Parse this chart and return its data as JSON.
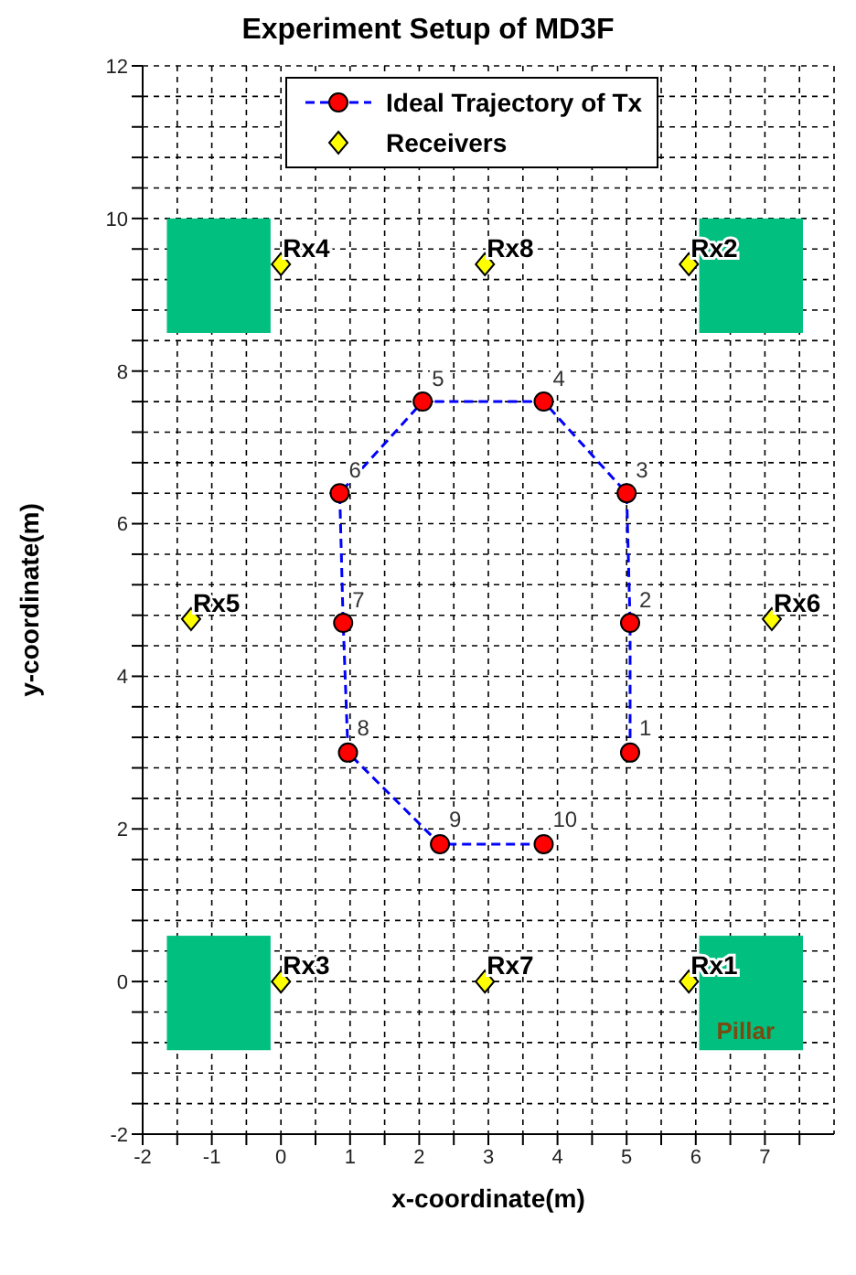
{
  "chart_data": {
    "type": "scatter",
    "title": "Experiment Setup of MD3F",
    "xlabel": "x-coordinate(m)",
    "ylabel": "y-coordinate(m)",
    "xlim": [
      -2,
      8
    ],
    "ylim": [
      -2,
      12
    ],
    "xticks": [
      -2,
      {
        "value": -1.5,
        "label": null
      },
      -1,
      {
        "value": -0.5,
        "label": null
      },
      0,
      {
        "value": 0.5,
        "label": null
      },
      1,
      {
        "value": 1.5,
        "label": null
      },
      2,
      {
        "value": 2.5,
        "label": null
      },
      3,
      {
        "value": 3.5,
        "label": null
      },
      4,
      {
        "value": 4.5,
        "label": null
      },
      5,
      {
        "value": 5.5,
        "label": null
      },
      6,
      {
        "value": 6.5,
        "label": null
      },
      7,
      {
        "value": 7.5,
        "label": null
      }
    ],
    "yticks": [
      -2,
      {
        "value": -1.6,
        "label": null
      },
      {
        "value": -1.2,
        "label": null
      },
      {
        "value": -0.8,
        "label": null
      },
      {
        "value": -0.4,
        "label": null
      },
      0,
      {
        "value": 0.4,
        "label": null
      },
      {
        "value": 0.8,
        "label": null
      },
      {
        "value": 1.2,
        "label": null
      },
      {
        "value": 1.6,
        "label": null
      },
      2,
      {
        "value": 2.4,
        "label": null
      },
      {
        "value": 2.8,
        "label": null
      },
      {
        "value": 3.2,
        "label": null
      },
      {
        "value": 3.6,
        "label": null
      },
      4,
      {
        "value": 4.4,
        "label": null
      },
      {
        "value": 4.8,
        "label": null
      },
      {
        "value": 5.2,
        "label": null
      },
      {
        "value": 5.6,
        "label": null
      },
      6,
      {
        "value": 6.4,
        "label": null
      },
      {
        "value": 6.8,
        "label": null
      },
      {
        "value": 7.2,
        "label": null
      },
      {
        "value": 7.6,
        "label": null
      },
      8,
      {
        "value": 8.4,
        "label": null
      },
      {
        "value": 8.8,
        "label": null
      },
      {
        "value": 9.2,
        "label": null
      },
      {
        "value": 9.6,
        "label": null
      },
      10,
      {
        "value": 10.4,
        "label": null
      },
      {
        "value": 10.8,
        "label": null
      },
      {
        "value": 11.2,
        "label": null
      },
      {
        "value": 11.6,
        "label": null
      },
      12
    ],
    "grid": true,
    "legend": "top",
    "annotations": [
      "Pillar",
      {
        "text": "1",
        "x": 5.05,
        "y": 3.0
      },
      {
        "text": "2",
        "x": 5.05,
        "y": 4.7
      },
      {
        "text": "3",
        "x": 5.0,
        "y": 6.4
      },
      {
        "text": "4",
        "x": 3.8,
        "y": 7.6
      },
      {
        "text": "5",
        "x": 2.05,
        "y": 7.6
      },
      {
        "text": "6",
        "x": 0.85,
        "y": 6.4
      },
      {
        "text": "7",
        "x": 0.9,
        "y": 4.7
      },
      {
        "text": "8",
        "x": 0.97,
        "y": 3.0
      },
      {
        "text": "9",
        "x": 2.3,
        "y": 1.8
      },
      {
        "text": "10",
        "x": 3.8,
        "y": 1.8
      }
    ],
    "series": [
      {
        "name": "Ideal Trajectory of Tx",
        "type": "line",
        "color": "#0000ff",
        "colors": [
          "#ff0000",
          "#ff0000",
          "#ff0000",
          "#ff0000",
          "#ff0000",
          "#ff0000",
          "#ff0000",
          "#ff0000",
          "#ff0000",
          "#ff0000"
        ],
        "line_style": "dashed",
        "marker": "circle",
        "x": [
          5.05,
          5.05,
          5.0,
          3.8,
          2.05,
          0.85,
          0.9,
          0.97,
          2.3,
          3.8
        ],
        "values": [
          3.0,
          4.7,
          6.4,
          7.6,
          7.6,
          6.4,
          4.7,
          3.0,
          1.8,
          1.8
        ]
      },
      {
        "name": "Receivers",
        "type": "scatter",
        "color": "#ffff00",
        "marker": "diamond",
        "x": [
          5.9,
          5.9,
          0,
          0,
          -1.3,
          7.1,
          2.95,
          2.95
        ],
        "values": [
          0,
          9.4,
          0,
          9.4,
          4.75,
          4.75,
          0,
          9.4
        ],
        "value_labels": [
          "Rx1",
          "Rx2",
          "Rx3",
          "Rx4",
          "Rx5",
          "Rx6",
          "Rx7",
          "Rx8"
        ]
      }
    ]
  }
}
